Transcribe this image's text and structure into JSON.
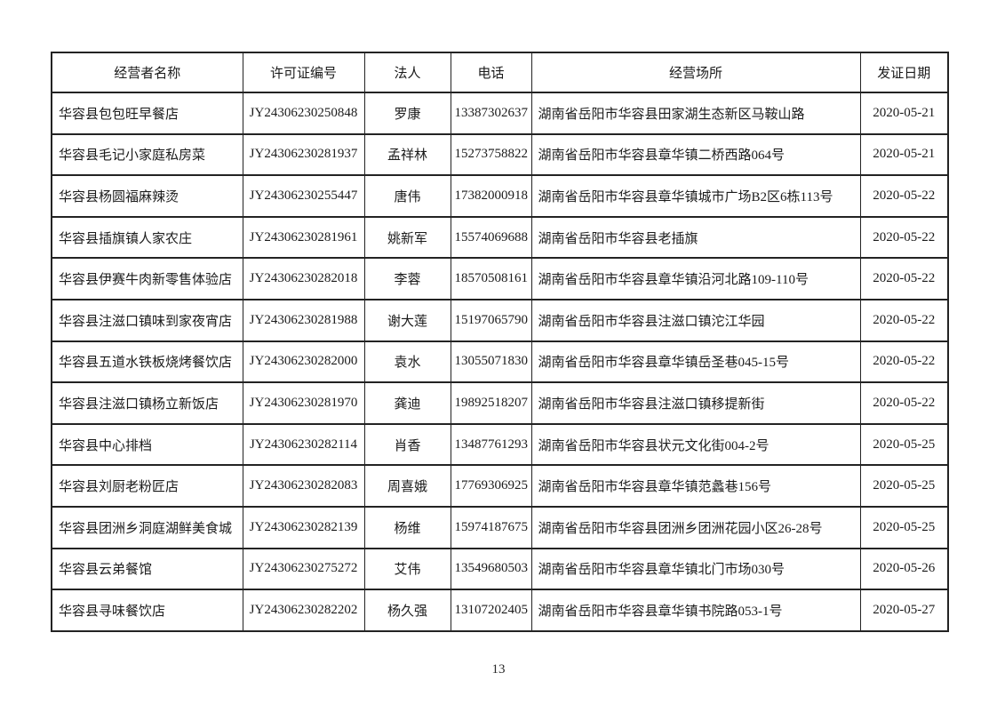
{
  "page": {
    "number": "13"
  },
  "table": {
    "headers": [
      "经营者名称",
      "许可证编号",
      "法人",
      "电话",
      "经营场所",
      "发证日期"
    ],
    "column_keys": [
      "operator-name",
      "license-number",
      "legal-person",
      "phone",
      "business-address",
      "issue-date"
    ],
    "rows": [
      [
        "华容县包包旺早餐店",
        "JY24306230250848",
        "罗康",
        "13387302637",
        "湖南省岳阳市华容县田家湖生态新区马鞍山路",
        "2020-05-21"
      ],
      [
        "华容县毛记小家庭私房菜",
        "JY24306230281937",
        "孟祥林",
        "15273758822",
        "湖南省岳阳市华容县章华镇二桥西路064号",
        "2020-05-21"
      ],
      [
        "华容县杨圆福麻辣烫",
        "JY24306230255447",
        "唐伟",
        "17382000918",
        "湖南省岳阳市华容县章华镇城市广场B2区6栋113号",
        "2020-05-22"
      ],
      [
        "华容县插旗镇人家农庄",
        "JY24306230281961",
        "姚新军",
        "15574069688",
        "湖南省岳阳市华容县老插旗",
        "2020-05-22"
      ],
      [
        "华容县伊赛牛肉新零售体验店",
        "JY24306230282018",
        "李蓉",
        "18570508161",
        "湖南省岳阳市华容县章华镇沿河北路109-110号",
        "2020-05-22"
      ],
      [
        "华容县注滋口镇味到家夜宵店",
        "JY24306230281988",
        "谢大莲",
        "15197065790",
        "湖南省岳阳市华容县注滋口镇沱江华园",
        "2020-05-22"
      ],
      [
        "华容县五道水铁板烧烤餐饮店",
        "JY24306230282000",
        "袁水",
        "13055071830",
        "湖南省岳阳市华容县章华镇岳圣巷045-15号",
        "2020-05-22"
      ],
      [
        "华容县注滋口镇杨立新饭店",
        "JY24306230281970",
        "龚迪",
        "19892518207",
        "湖南省岳阳市华容县注滋口镇移提新街",
        "2020-05-22"
      ],
      [
        "华容县中心排档",
        "JY24306230282114",
        "肖香",
        "13487761293",
        "湖南省岳阳市华容县状元文化街004-2号",
        "2020-05-25"
      ],
      [
        "华容县刘厨老粉匠店",
        "JY24306230282083",
        "周喜娥",
        "17769306925",
        "湖南省岳阳市华容县章华镇范蠡巷156号",
        "2020-05-25"
      ],
      [
        "华容县团洲乡洞庭湖鲜美食城",
        "JY24306230282139",
        "杨维",
        "15974187675",
        "湖南省岳阳市华容县团洲乡团洲花园小区26-28号",
        "2020-05-25"
      ],
      [
        "华容县云弟餐馆",
        "JY24306230275272",
        "艾伟",
        "13549680503",
        "湖南省岳阳市华容县章华镇北门市场030号",
        "2020-05-26"
      ],
      [
        "华容县寻味餐饮店",
        "JY24306230282202",
        "杨久强",
        "13107202405",
        "湖南省岳阳市华容县章华镇书院路053-1号",
        "2020-05-27"
      ]
    ]
  },
  "colors": {
    "border": "#232323",
    "text": "#1b1b1b",
    "background": "#ffffff"
  }
}
